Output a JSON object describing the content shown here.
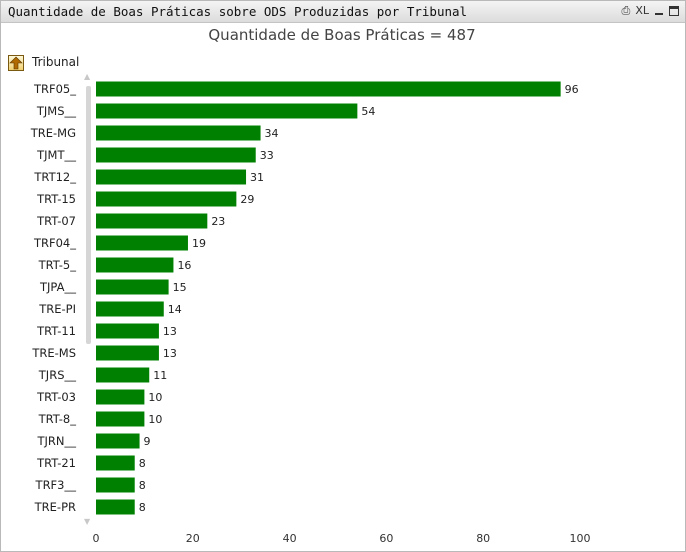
{
  "window": {
    "title": "Quantidade de Boas Práticas sobre ODS Produzidas por Tribunal",
    "print_icon": "print-icon",
    "xl_label": "XL"
  },
  "dimension": {
    "label": "Tribunal",
    "icon": "drill-up-icon"
  },
  "colors": {
    "bar": "#008000"
  },
  "chart_data": {
    "type": "bar",
    "orientation": "horizontal",
    "title": "Quantidade de Boas Práticas = 487",
    "categories": [
      "TRF05_",
      "TJMS__",
      "TRE-MG",
      "TJMT__",
      "TRT12_",
      "TRT-15",
      "TRT-07",
      "TRF04_",
      "TRT-5_",
      "TJPA__",
      "TRE-PI",
      "TRT-11",
      "TRE-MS",
      "TJRS__",
      "TRT-03",
      "TRT-8_",
      "TJRN__",
      "TRT-21",
      "TRF3__",
      "TRE-PR"
    ],
    "values": [
      96,
      54,
      34,
      33,
      31,
      29,
      23,
      19,
      16,
      15,
      14,
      13,
      13,
      11,
      10,
      10,
      9,
      8,
      8,
      8
    ],
    "xlim": [
      0,
      100
    ],
    "xticks": [
      0,
      20,
      40,
      60,
      80,
      100
    ],
    "xlabel": "",
    "ylabel": "",
    "grid": false,
    "legend": "none"
  }
}
